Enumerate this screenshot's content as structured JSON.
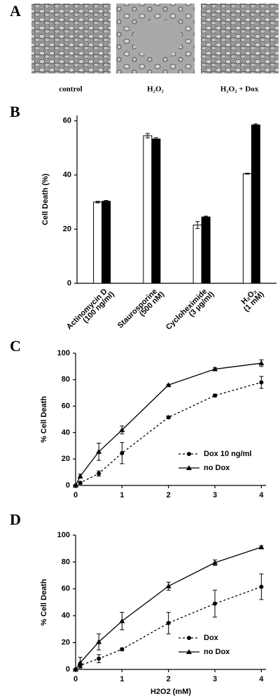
{
  "panel_a": {
    "letter": "A",
    "labels": [
      "control",
      "H₂O₂",
      "H₂O₂ + Dox"
    ]
  },
  "chart_data": [
    {
      "type": "bar",
      "letter": "B",
      "ylabel": "Cell Death (%)",
      "categories": [
        "Actinomycin D",
        "Staurosporine",
        "Cycloheximide",
        "H₂O₂"
      ],
      "category_notes": [
        "(100 ng/ml)",
        "(500 nM)",
        "(3 µg/ml)",
        "(1 mM)"
      ],
      "series": [
        {
          "color": "#ffffff",
          "values": [
            30,
            54.5,
            21.5,
            40.5
          ],
          "errors": [
            0.3,
            0.8,
            1.3,
            0.2
          ]
        },
        {
          "color": "#000000",
          "values": [
            30.3,
            53.3,
            24.5,
            58.5
          ],
          "errors": [
            0.3,
            0.5,
            0.3,
            0.4
          ]
        }
      ],
      "ylim": [
        0,
        62
      ],
      "yticks": [
        0,
        20,
        40,
        60
      ]
    },
    {
      "type": "line",
      "letter": "C",
      "ylabel": "% Cell Death",
      "x": [
        0,
        0.1,
        0.5,
        1,
        2,
        3,
        4
      ],
      "series": [
        {
          "name": "Dox 10 ng/ml",
          "color": "#000000",
          "dashed": true,
          "marker": "circle",
          "values": [
            0,
            2,
            9,
            24.5,
            51.5,
            68,
            78
          ],
          "errors": [
            0,
            1,
            2,
            8,
            1,
            1,
            4.5
          ]
        },
        {
          "name": "no Dox",
          "color": "#000000",
          "dashed": false,
          "marker": "triangle",
          "values": [
            0,
            7,
            25.5,
            42,
            76,
            88,
            92.5
          ],
          "errors": [
            0,
            1.5,
            6.5,
            3,
            0.5,
            1,
            2.5
          ]
        }
      ],
      "xlim": [
        0,
        4.1
      ],
      "xticks": [
        0,
        1,
        2,
        3,
        4
      ],
      "ylim": [
        0,
        100
      ],
      "yticks": [
        0,
        20,
        40,
        60,
        80,
        100
      ],
      "legend": "lower right"
    },
    {
      "type": "line",
      "letter": "D",
      "ylabel": "% Cell Death",
      "xlabel": "H2O2 (mM)",
      "x": [
        0,
        0.1,
        0.5,
        1,
        2,
        3,
        4
      ],
      "series": [
        {
          "name": "Dox",
          "color": "#000000",
          "dashed": true,
          "marker": "circle",
          "values": [
            0,
            3,
            8,
            15,
            34.5,
            49,
            61.5
          ],
          "errors": [
            0,
            1.5,
            3,
            1,
            8,
            10,
            9.5
          ]
        },
        {
          "name": "no Dox",
          "color": "#000000",
          "dashed": false,
          "marker": "triangle",
          "values": [
            0,
            5,
            20.5,
            36,
            62,
            79.5,
            91
          ],
          "errors": [
            0,
            4,
            6,
            6.5,
            3,
            2,
            1
          ]
        }
      ],
      "xlim": [
        0,
        4.1
      ],
      "xticks": [
        0,
        1,
        2,
        3,
        4
      ],
      "ylim": [
        0,
        100
      ],
      "yticks": [
        0,
        20,
        40,
        60,
        80,
        100
      ],
      "legend": "lower right"
    }
  ]
}
